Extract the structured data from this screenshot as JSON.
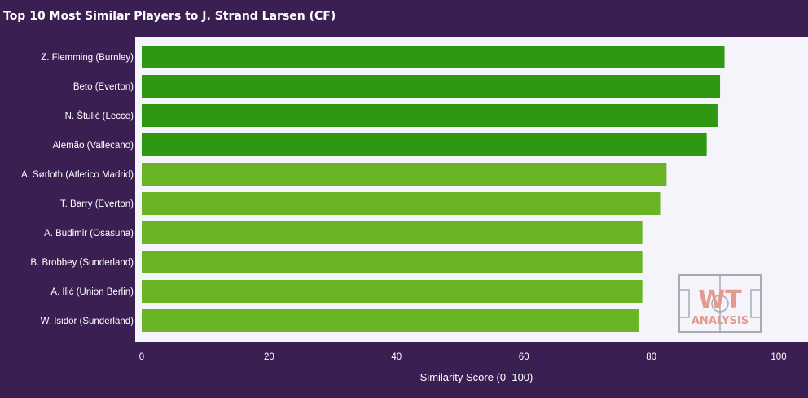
{
  "chart_data": {
    "type": "bar",
    "orientation": "horizontal",
    "title": "Top 10 Most Similar Players to J. Strand Larsen (CF)",
    "xlabel": "Similarity Score (0–100)",
    "ylabel": "",
    "xlim": [
      0,
      100
    ],
    "xticks": [
      0,
      20,
      40,
      60,
      80,
      100
    ],
    "grid": false,
    "categories": [
      "Z. Flemming (Burnley)",
      "Beto (Everton)",
      "N. Štulić (Lecce)",
      "Alemão (Vallecano)",
      "A. Sørloth (Atletico Madrid)",
      "T. Barry (Everton)",
      "A. Budimir (Osasuna)",
      "B. Brobbey (Sunderland)",
      "A. Ilić (Union Berlin)",
      "W. Isidor (Sunderland)"
    ],
    "values": [
      91.5,
      90.8,
      90.4,
      88.7,
      82.4,
      81.4,
      78.6,
      78.6,
      78.6,
      78.0
    ],
    "tier": [
      "high",
      "high",
      "high",
      "high",
      "mid",
      "mid",
      "mid",
      "mid",
      "mid",
      "mid"
    ]
  },
  "colors": {
    "background": "#3a1f52",
    "plot_background": "#f4f4fa",
    "bar_high": "#2e9812",
    "bar_mid": "#6ab525",
    "text": "#ffffff"
  },
  "watermark": {
    "line1": "WT",
    "line2": "ANALYSIS",
    "color": "#e59a8f"
  }
}
